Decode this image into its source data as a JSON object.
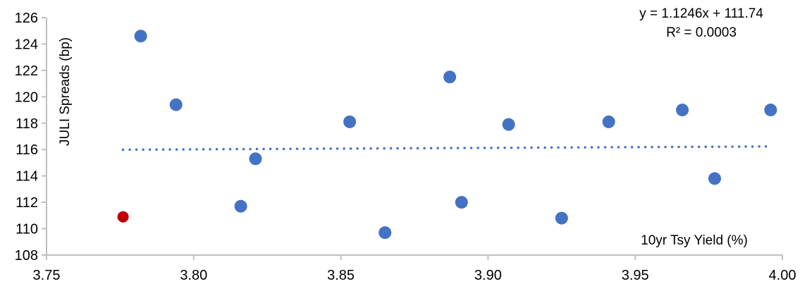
{
  "chart_data": {
    "type": "scatter",
    "title": "",
    "xlabel": "10yr Tsy Yield (%)",
    "ylabel": "JULI Spreads (bp)",
    "xlim": [
      3.75,
      4.0
    ],
    "ylim": [
      108,
      126
    ],
    "xticks": [
      "3.75",
      "3.80",
      "3.85",
      "3.90",
      "3.95",
      "4.00"
    ],
    "yticks": [
      "108",
      "110",
      "112",
      "114",
      "116",
      "118",
      "120",
      "122",
      "124",
      "126"
    ],
    "grid": false,
    "series": [
      {
        "color": "#4472C4",
        "points": [
          {
            "x": 3.782,
            "y": 124.6
          },
          {
            "x": 3.794,
            "y": 119.4
          },
          {
            "x": 3.816,
            "y": 111.7
          },
          {
            "x": 3.821,
            "y": 115.3
          },
          {
            "x": 3.853,
            "y": 118.1
          },
          {
            "x": 3.865,
            "y": 109.7
          },
          {
            "x": 3.887,
            "y": 121.5
          },
          {
            "x": 3.891,
            "y": 112.0
          },
          {
            "x": 3.907,
            "y": 117.9
          },
          {
            "x": 3.925,
            "y": 110.8
          },
          {
            "x": 3.941,
            "y": 118.1
          },
          {
            "x": 3.966,
            "y": 119.0
          },
          {
            "x": 3.977,
            "y": 113.8
          },
          {
            "x": 3.996,
            "y": 119.0
          }
        ]
      },
      {
        "color": "#C00000",
        "points": [
          {
            "x": 3.776,
            "y": 110.9
          }
        ]
      }
    ],
    "trendline": {
      "type": "linear",
      "slope": 1.1246,
      "intercept": 111.74,
      "color": "#4472C4",
      "style": "dotted",
      "equation_label": "y = 1.1246x + 111.74",
      "r2_label": "R² = 0.0003"
    }
  }
}
